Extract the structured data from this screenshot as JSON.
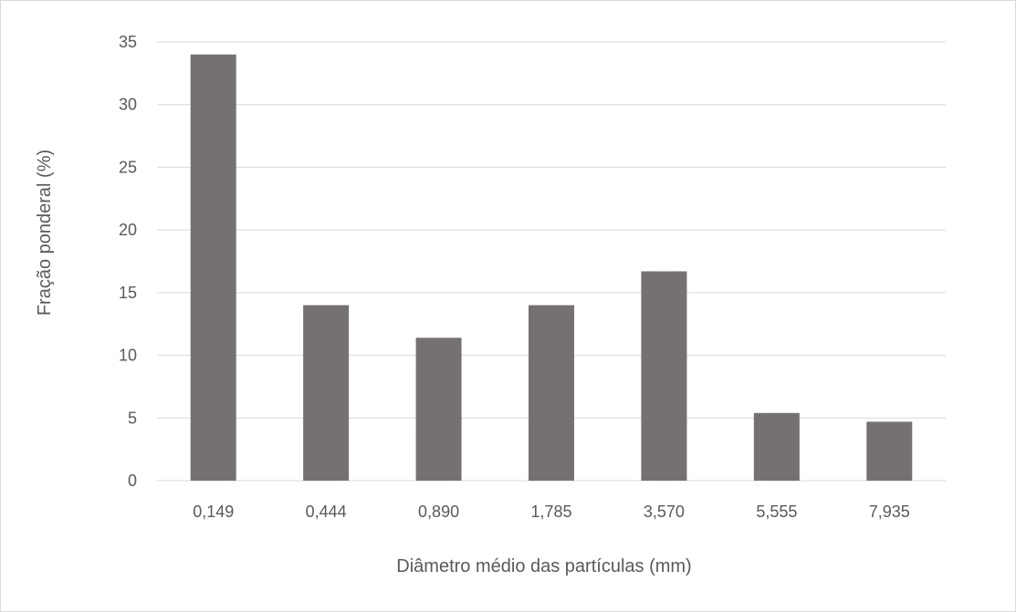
{
  "chart_data": {
    "type": "bar",
    "categories": [
      "0,149",
      "0,444",
      "0,890",
      "1,785",
      "3,570",
      "5,555",
      "7,935"
    ],
    "values": [
      34.0,
      14.0,
      11.4,
      14.0,
      16.7,
      5.4,
      4.7
    ],
    "title": "",
    "xlabel": "Diâmetro médio das partículas (mm)",
    "ylabel": "Fração ponderal (%)",
    "ylim": [
      0,
      35
    ],
    "yticks": [
      "0",
      "5",
      "10",
      "15",
      "20",
      "25",
      "30",
      "35"
    ],
    "grid": true,
    "legend": "none",
    "colors": {
      "bar": "#767171",
      "grid": "#d9d9d9",
      "text": "#595959"
    }
  }
}
